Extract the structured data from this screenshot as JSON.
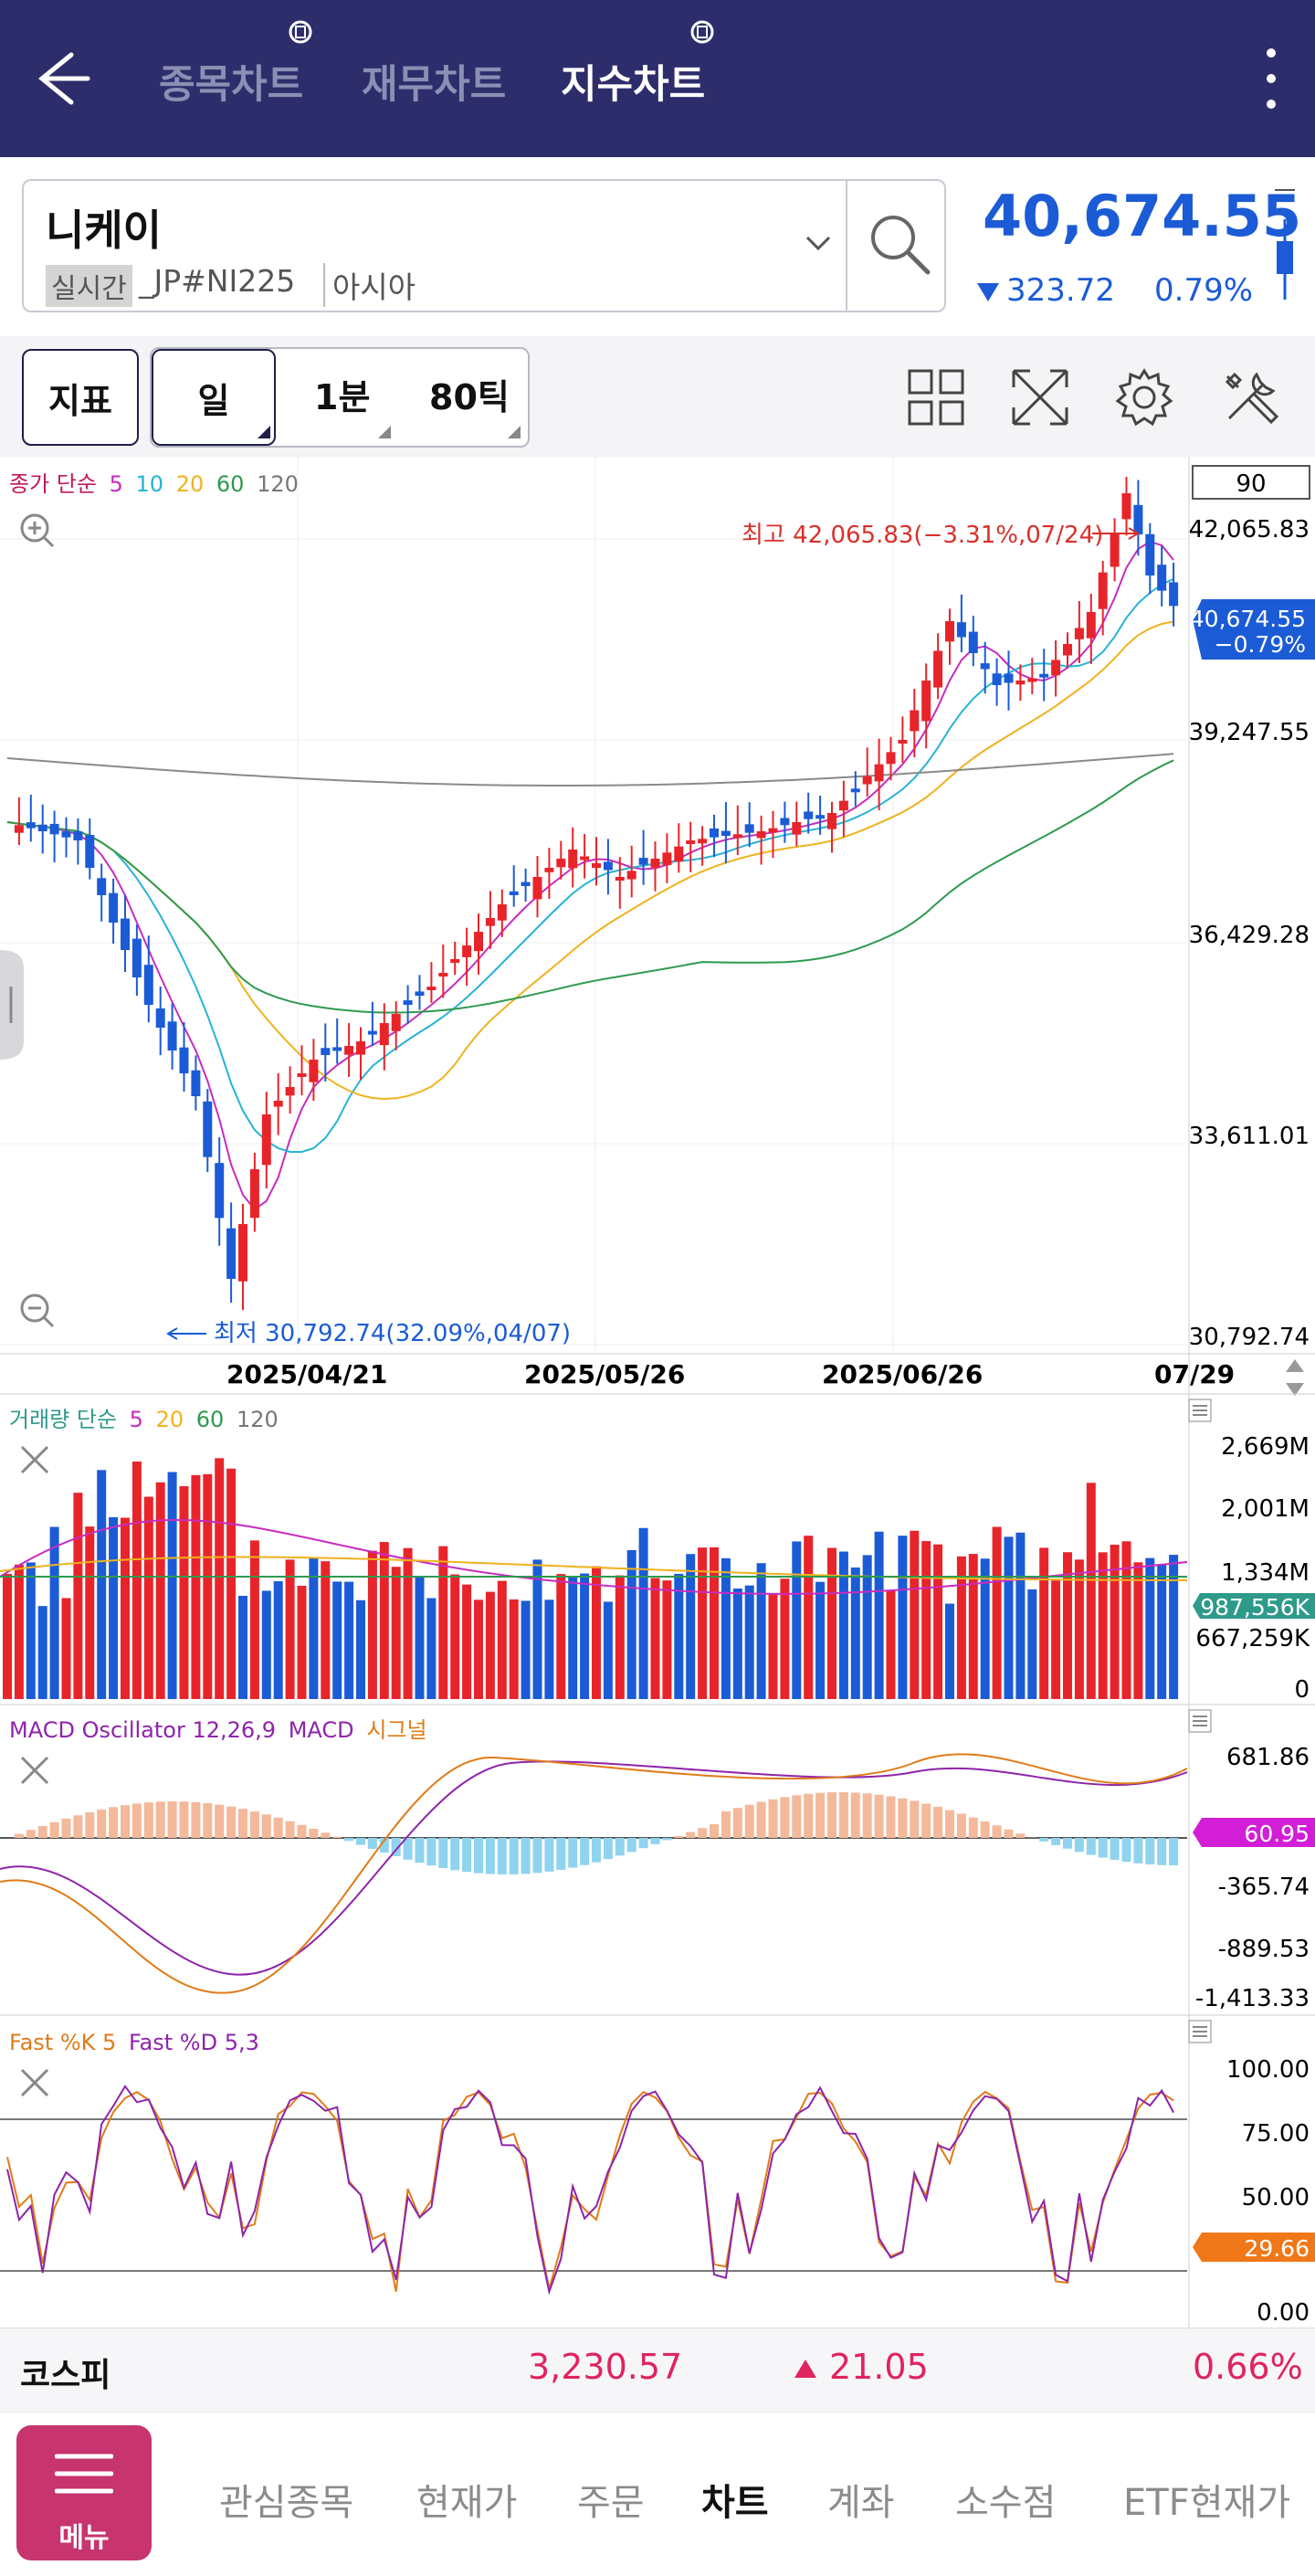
{
  "header": {
    "tabs": [
      {
        "label": "종목차트",
        "active": false
      },
      {
        "label": "재무차트",
        "active": false
      },
      {
        "label": "지수차트",
        "active": true
      }
    ]
  },
  "symbol": {
    "name": "니케이",
    "badge": "실시간",
    "code": "_JP#NI225",
    "region": "아시아",
    "price": "40,674.55",
    "change": "323.72",
    "change_pct": "0.79%",
    "direction": "down"
  },
  "toolbar": {
    "indicator_label": "지표",
    "period_label": "일",
    "minute_label": "1분",
    "tick_label": "80틱"
  },
  "main_chart": {
    "legend": {
      "prefix": "종가 단순",
      "ma5": "5",
      "ma10": "10",
      "ma20": "20",
      "ma60": "60",
      "ma120": "120"
    },
    "bar_count": "90",
    "y_labels": [
      "42,065.83",
      "39,247.55",
      "36,429.28",
      "33,611.01",
      "30,792.74"
    ],
    "high_note": "최고 42,065.83(−3.31%,07/24)",
    "low_note": "최저 30,792.74(32.09%,04/07)",
    "current_price": "40,674.55",
    "current_pct": "−0.79%",
    "dates": [
      "2025/04/21",
      "2025/05/26",
      "2025/06/26",
      "07/29"
    ]
  },
  "volume_chart": {
    "legend": {
      "prefix": "거래량 단순",
      "ma5": "5",
      "ma20": "20",
      "ma60": "60",
      "ma120": "120"
    },
    "y_labels": [
      "2,669M",
      "2,001M",
      "1,334M",
      "667,259K",
      "0"
    ],
    "current": "987,556K"
  },
  "macd_chart": {
    "legend": {
      "name": "MACD Oscillator 12,26,9",
      "macd": "MACD",
      "signal": "시그널"
    },
    "y_labels": [
      "681.86",
      "-365.74",
      "-889.53",
      "-1,413.33"
    ],
    "current": "60.95"
  },
  "stoch_chart": {
    "legend": {
      "k": "Fast %K 5",
      "d": "Fast %D 5,3"
    },
    "y_labels": [
      "100.00",
      "75.00",
      "50.00",
      "0.00"
    ],
    "current": "29.66"
  },
  "index_bar": {
    "name": "코스피",
    "value": "3,230.57",
    "change": "21.05",
    "change_pct": "0.66%"
  },
  "nav": {
    "menu_label": "메뉴",
    "items": [
      {
        "label": "관심종목",
        "active": false
      },
      {
        "label": "현재가",
        "active": false
      },
      {
        "label": "주문",
        "active": false
      },
      {
        "label": "차트",
        "active": true
      },
      {
        "label": "계좌",
        "active": false
      },
      {
        "label": "소수점",
        "active": false
      },
      {
        "label": "ETF현재가",
        "active": false
      }
    ]
  },
  "colors": {
    "header_bg": "#2e2d6b",
    "up": "#e8242b",
    "down": "#1b5bd6",
    "accent": "#c7346e",
    "ma5": "#c72cc0",
    "ma10": "#27b3d6",
    "ma20": "#f0b21e",
    "ma60": "#2e9a4e",
    "ma120": "#8a8a8a"
  }
}
